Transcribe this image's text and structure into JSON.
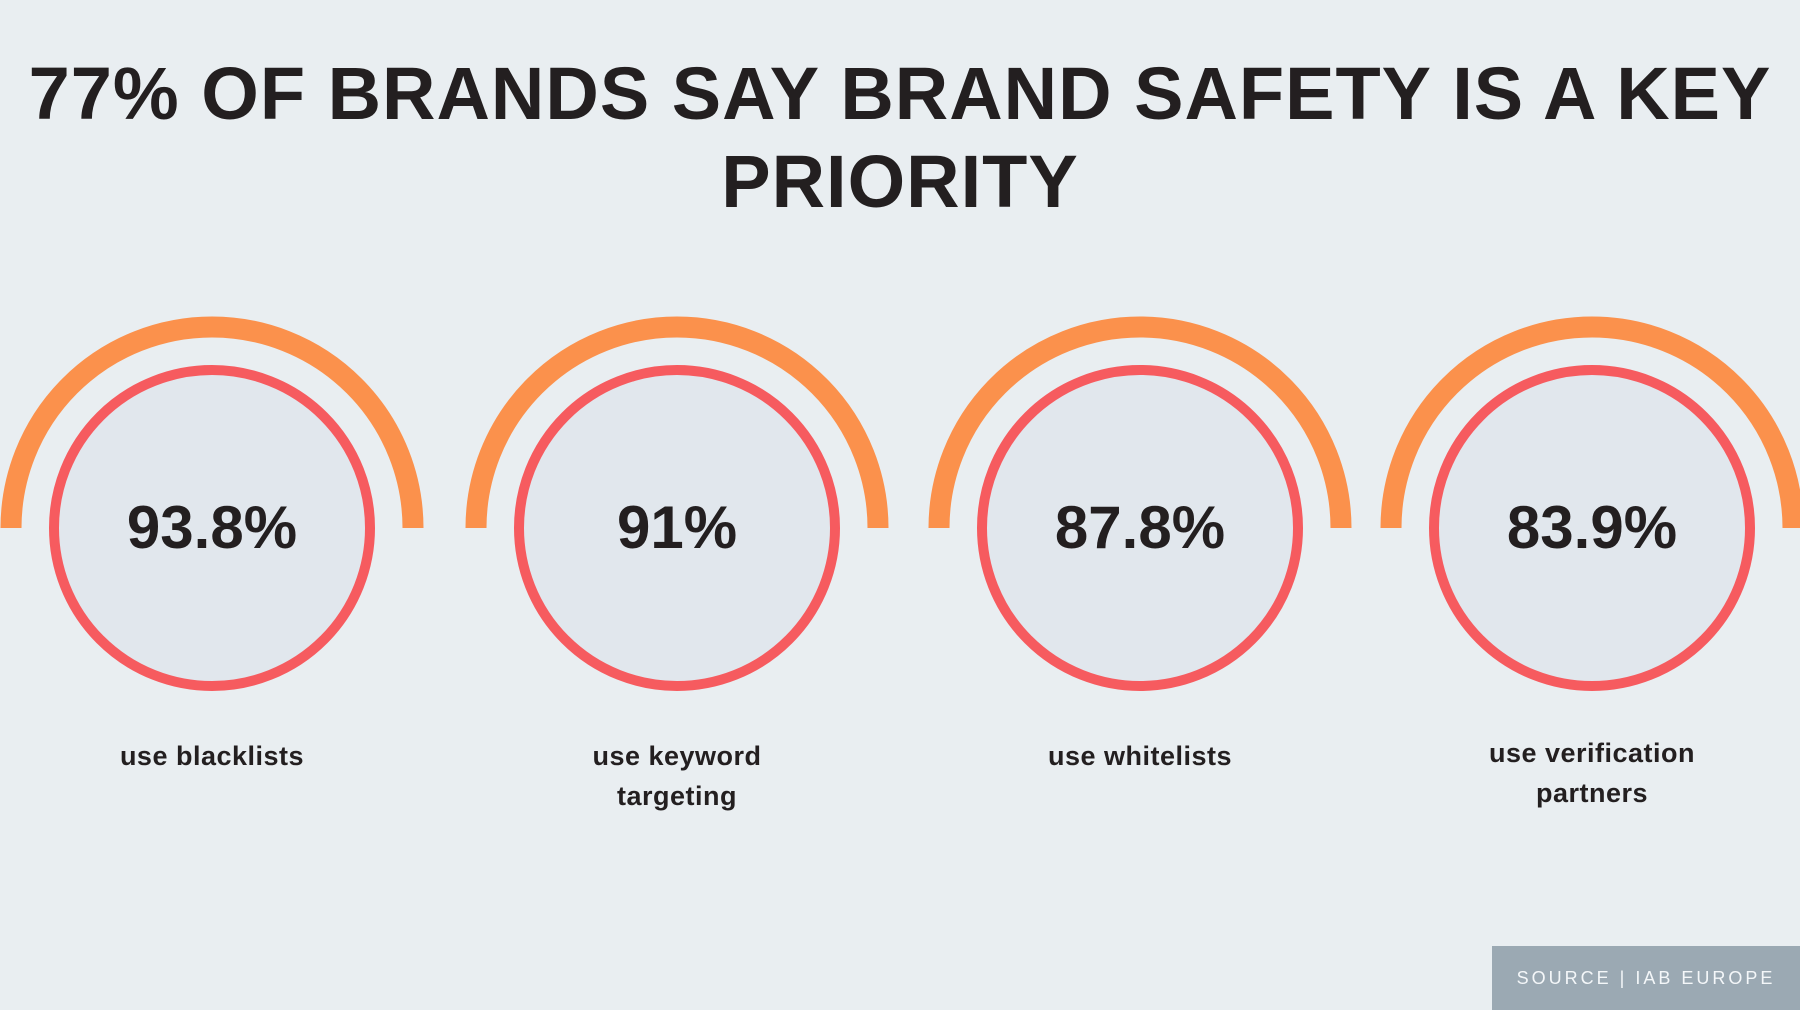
{
  "header": {
    "title": "77% OF BRANDS SAY BRAND SAFETY IS A KEY PRIORITY"
  },
  "stats": [
    {
      "value": "93.8%",
      "label": "use blacklists"
    },
    {
      "value": "91%",
      "label": "use keyword targeting"
    },
    {
      "value": "87.8%",
      "label": "use whitelists"
    },
    {
      "value": "83.9%",
      "label": "use verification partners"
    }
  ],
  "footer": {
    "source": "SOURCE | IAB EUROPE"
  }
}
